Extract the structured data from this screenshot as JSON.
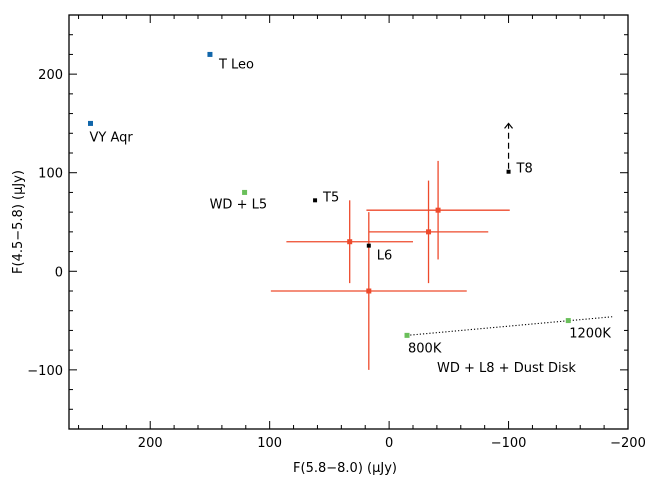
{
  "chart_data": {
    "type": "scatter",
    "title": "",
    "xlabel": "F(5.8−8.0) (μJy)",
    "ylabel": "F(4.5−5.8) (μJy)",
    "xlim": [
      268,
      -200
    ],
    "ylim": [
      -160,
      260
    ],
    "x_reversed": true,
    "x_ticks": [
      200,
      100,
      0,
      -100,
      -200
    ],
    "x_tick_labels": [
      "200",
      "100",
      "0",
      "−100",
      "−200"
    ],
    "y_ticks": [
      -100,
      0,
      100,
      200
    ],
    "y_tick_labels": [
      "−100",
      "0",
      "100",
      "200"
    ],
    "grid": false,
    "colors": {
      "blue": "#1166aa",
      "green": "#6abf5a",
      "black": "#000000",
      "red": "#ee4a2c"
    },
    "references": [
      {
        "label": "T Leo",
        "x": 150,
        "y": 220,
        "color": "blue"
      },
      {
        "label": "VY Aqr",
        "x": 250,
        "y": 150,
        "color": "blue"
      },
      {
        "label": "WD + L5",
        "x": 121,
        "y": 80,
        "color": "green"
      },
      {
        "label": "T5",
        "x": 62,
        "y": 72,
        "color": "black"
      },
      {
        "label": "L6",
        "x": 17,
        "y": 26,
        "color": "black"
      },
      {
        "label": "T8",
        "x": -100,
        "y": 101,
        "color": "black",
        "lower_limit": true,
        "arrow_to": 150
      }
    ],
    "measurements": [
      {
        "x": 33,
        "y": 30,
        "xerr": 53,
        "yerr": 42
      },
      {
        "x": 17,
        "y": -20,
        "xerr": 82,
        "yerr": 80
      },
      {
        "x": -41,
        "y": 62,
        "xerr": 60,
        "yerr": 50
      },
      {
        "x": -33,
        "y": 40,
        "xerr": 50,
        "yerr": 52
      }
    ],
    "dust_disk_track": {
      "label": "WD + L8 + Dust Disk",
      "start": {
        "label": "800K",
        "x": -15,
        "y": -65
      },
      "end": {
        "label": "1200K",
        "x": -150,
        "y": -50
      },
      "extend_to": {
        "x": -188,
        "y": -46
      }
    }
  }
}
